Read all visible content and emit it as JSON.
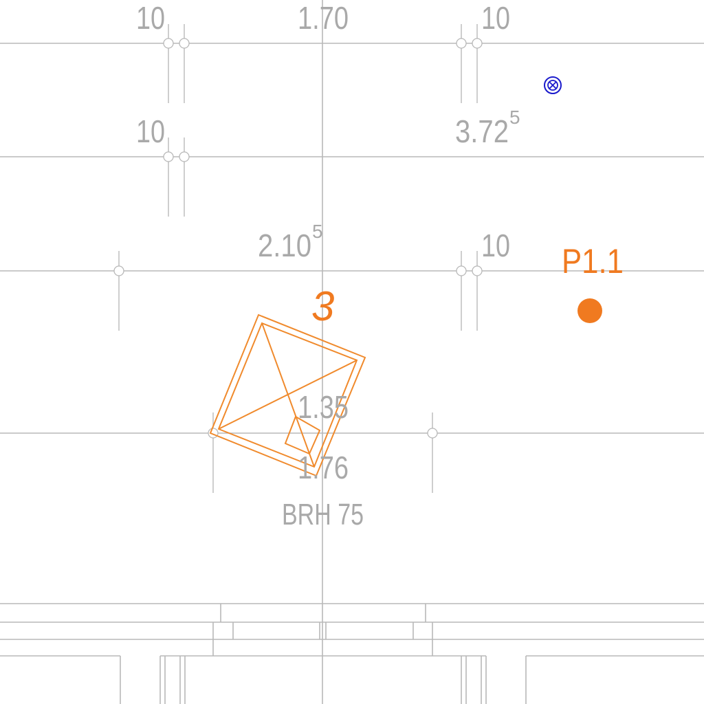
{
  "drawing": {
    "background": "#ffffff",
    "grid_color": "#b8b8b8",
    "text_color": "#a9a9a9",
    "accent_color": "#f07a20",
    "marker_color": "#1a1acc"
  },
  "dimensions": {
    "top_left": "10",
    "top_center": "1.70",
    "top_right": "10",
    "row2_left": "10",
    "row2_right_main": "3.72",
    "row2_right_sup": "5",
    "row3_center_main": "2.10",
    "row3_center_sup": "5",
    "row3_right": "10",
    "center_a": "1.35",
    "center_b": "1.76",
    "brh": "BRH 75"
  },
  "annotations": {
    "item_number": "3",
    "point_label": "P1.1",
    "marker_icon": "circled-x-marker-icon"
  }
}
